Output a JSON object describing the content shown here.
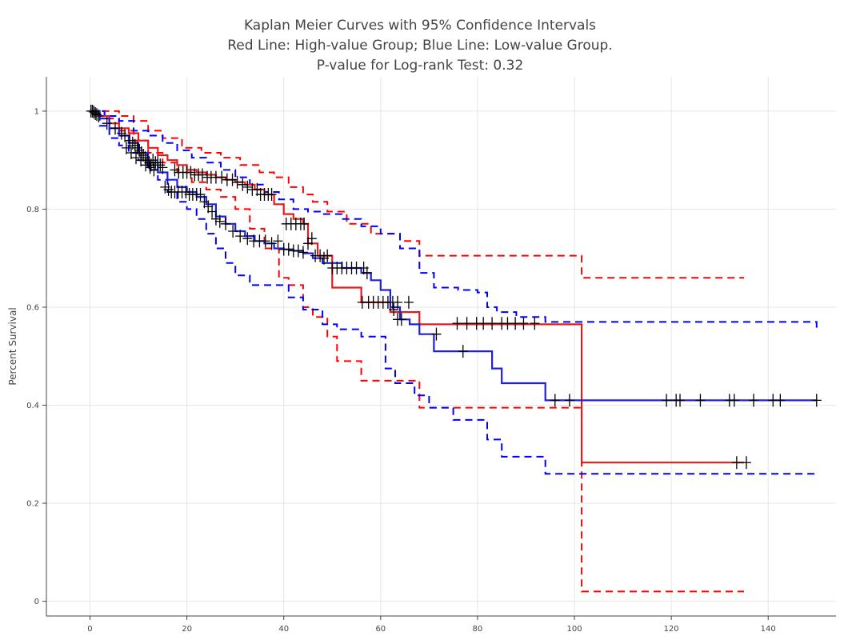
{
  "chart_data": {
    "type": "line",
    "title_lines": [
      "Kaplan Meier Curves with 95% Confidence Intervals",
      "Red Line: High-value Group; Blue Line: Low-value Group.",
      "P-value for Log-rank Test: 0.32"
    ],
    "xlabel": "",
    "ylabel": "Percent Survival",
    "xlim": [
      -9,
      154
    ],
    "ylim": [
      -0.03,
      1.07
    ],
    "x_ticks": [
      0,
      20,
      40,
      60,
      80,
      100,
      120,
      140
    ],
    "y_ticks": [
      0,
      0.2,
      0.4,
      0.6,
      0.8,
      1
    ],
    "y_tick_labels": [
      "0",
      "0.2",
      "0.4",
      "0.6",
      "0.8",
      "1"
    ],
    "grid": true,
    "censor_color": "#000000",
    "series": [
      {
        "name": "High-value Group",
        "role": "estimate",
        "color": "#e41a1c",
        "dash": "solid",
        "x": [
          0,
          2,
          4,
          6,
          8,
          10,
          12,
          14,
          16,
          18,
          20,
          22,
          24,
          26,
          28,
          30,
          32,
          34,
          36,
          38,
          40,
          42,
          44,
          45,
          47,
          50,
          56,
          62,
          68,
          101.5,
          135
        ],
        "y": [
          1.0,
          0.99,
          0.975,
          0.965,
          0.955,
          0.94,
          0.925,
          0.91,
          0.9,
          0.89,
          0.88,
          0.875,
          0.87,
          0.865,
          0.86,
          0.855,
          0.85,
          0.84,
          0.83,
          0.81,
          0.79,
          0.78,
          0.77,
          0.73,
          0.705,
          0.64,
          0.61,
          0.59,
          0.565,
          0.283,
          0.283
        ]
      },
      {
        "name": "High-value Group 95% CI upper",
        "role": "ci",
        "color": "#ff0000",
        "dash": "dashed",
        "x": [
          0,
          3,
          6,
          9,
          12,
          15,
          19,
          23,
          27,
          31,
          35,
          38,
          41,
          44,
          46,
          49,
          53,
          58,
          64,
          68,
          101.5,
          135
        ],
        "y": [
          1.0,
          1.0,
          0.99,
          0.98,
          0.96,
          0.945,
          0.925,
          0.915,
          0.905,
          0.89,
          0.875,
          0.865,
          0.845,
          0.83,
          0.815,
          0.795,
          0.77,
          0.75,
          0.735,
          0.705,
          0.66,
          0.66
        ]
      },
      {
        "name": "High-value Group 95% CI lower",
        "role": "ci",
        "color": "#ff0000",
        "dash": "dashed",
        "x": [
          0,
          3,
          6,
          9,
          12,
          15,
          18,
          21,
          24,
          27,
          30,
          33,
          36,
          39,
          41,
          44,
          46,
          49,
          51,
          56,
          62,
          68,
          101.5,
          135
        ],
        "y": [
          1.0,
          0.985,
          0.96,
          0.94,
          0.915,
          0.895,
          0.875,
          0.855,
          0.84,
          0.825,
          0.8,
          0.76,
          0.72,
          0.66,
          0.645,
          0.6,
          0.58,
          0.54,
          0.49,
          0.45,
          0.45,
          0.395,
          0.02,
          0.02
        ]
      },
      {
        "name": "Low-value Group",
        "role": "estimate",
        "color": "#1f1fdd",
        "dash": "solid",
        "x": [
          0,
          2,
          4,
          6,
          8,
          10,
          12,
          14,
          16,
          18,
          20,
          22,
          24,
          26,
          28,
          30,
          32,
          34,
          36,
          38,
          40,
          42,
          44,
          46,
          48,
          52,
          56,
          58,
          60,
          62,
          64,
          66,
          68,
          71,
          75,
          83,
          85,
          94,
          150
        ],
        "y": [
          1.0,
          0.985,
          0.965,
          0.95,
          0.935,
          0.915,
          0.895,
          0.875,
          0.86,
          0.845,
          0.835,
          0.825,
          0.81,
          0.785,
          0.77,
          0.755,
          0.745,
          0.735,
          0.73,
          0.72,
          0.718,
          0.715,
          0.71,
          0.7,
          0.69,
          0.68,
          0.67,
          0.655,
          0.635,
          0.6,
          0.575,
          0.565,
          0.545,
          0.51,
          0.51,
          0.475,
          0.445,
          0.41,
          0.41
        ]
      },
      {
        "name": "Low-value Group 95% CI upper",
        "role": "ci",
        "color": "#0000ff",
        "dash": "dashed",
        "x": [
          0,
          3,
          6,
          9,
          12,
          15,
          18,
          21,
          24,
          27,
          30,
          33,
          36,
          39,
          42,
          45,
          48,
          52,
          56,
          60,
          64,
          68,
          71,
          76,
          80,
          82,
          84,
          88,
          94,
          150
        ],
        "y": [
          1.0,
          0.99,
          0.98,
          0.96,
          0.95,
          0.935,
          0.92,
          0.905,
          0.895,
          0.88,
          0.865,
          0.85,
          0.835,
          0.82,
          0.8,
          0.795,
          0.79,
          0.78,
          0.765,
          0.75,
          0.72,
          0.67,
          0.64,
          0.635,
          0.63,
          0.6,
          0.59,
          0.58,
          0.57,
          0.555
        ]
      },
      {
        "name": "Low-value Group 95% CI lower",
        "role": "ci",
        "color": "#0000ff",
        "dash": "dashed",
        "x": [
          0,
          2,
          4,
          6,
          8,
          10,
          12,
          14,
          16,
          18,
          20,
          22,
          24,
          26,
          28,
          30,
          33,
          36,
          39,
          41,
          44,
          48,
          51,
          56,
          61,
          63,
          67,
          70,
          75,
          82,
          85,
          94,
          150
        ],
        "y": [
          1.0,
          0.97,
          0.945,
          0.93,
          0.915,
          0.9,
          0.88,
          0.86,
          0.835,
          0.815,
          0.8,
          0.78,
          0.75,
          0.72,
          0.69,
          0.665,
          0.645,
          0.645,
          0.645,
          0.62,
          0.595,
          0.565,
          0.555,
          0.54,
          0.475,
          0.445,
          0.42,
          0.395,
          0.37,
          0.33,
          0.295,
          0.26,
          0.26
        ]
      }
    ],
    "censor_marks": [
      {
        "x": 0.2,
        "y": 1.0
      },
      {
        "x": 0.5,
        "y": 1.0
      },
      {
        "x": 0.8,
        "y": 0.998
      },
      {
        "x": 1.1,
        "y": 0.995
      },
      {
        "x": 1.4,
        "y": 0.993
      },
      {
        "x": 1.8,
        "y": 0.99
      },
      {
        "x": 3.5,
        "y": 0.975
      },
      {
        "x": 5.2,
        "y": 0.965
      },
      {
        "x": 6.5,
        "y": 0.955
      },
      {
        "x": 7.2,
        "y": 0.95
      },
      {
        "x": 8.2,
        "y": 0.94
      },
      {
        "x": 8.8,
        "y": 0.935
      },
      {
        "x": 9.3,
        "y": 0.93
      },
      {
        "x": 9.8,
        "y": 0.925
      },
      {
        "x": 10.2,
        "y": 0.92
      },
      {
        "x": 10.6,
        "y": 0.915
      },
      {
        "x": 11.0,
        "y": 0.91
      },
      {
        "x": 11.4,
        "y": 0.905
      },
      {
        "x": 11.8,
        "y": 0.9
      },
      {
        "x": 12.2,
        "y": 0.895
      },
      {
        "x": 12.6,
        "y": 0.89
      },
      {
        "x": 13.0,
        "y": 0.9
      },
      {
        "x": 13.5,
        "y": 0.895
      },
      {
        "x": 14.0,
        "y": 0.895
      },
      {
        "x": 14.5,
        "y": 0.89
      },
      {
        "x": 15.0,
        "y": 0.885
      },
      {
        "x": 7.5,
        "y": 0.925
      },
      {
        "x": 8.5,
        "y": 0.915
      },
      {
        "x": 9.5,
        "y": 0.905
      },
      {
        "x": 10.5,
        "y": 0.9
      },
      {
        "x": 11.5,
        "y": 0.89
      },
      {
        "x": 12.4,
        "y": 0.885
      },
      {
        "x": 13.2,
        "y": 0.88
      },
      {
        "x": 17.5,
        "y": 0.88
      },
      {
        "x": 18.3,
        "y": 0.875
      },
      {
        "x": 19.2,
        "y": 0.875
      },
      {
        "x": 20.0,
        "y": 0.875
      },
      {
        "x": 20.8,
        "y": 0.875
      },
      {
        "x": 21.6,
        "y": 0.87
      },
      {
        "x": 22.4,
        "y": 0.87
      },
      {
        "x": 23.2,
        "y": 0.87
      },
      {
        "x": 24.2,
        "y": 0.865
      },
      {
        "x": 25.0,
        "y": 0.865
      },
      {
        "x": 26.0,
        "y": 0.865
      },
      {
        "x": 27.2,
        "y": 0.865
      },
      {
        "x": 28.3,
        "y": 0.86
      },
      {
        "x": 29.4,
        "y": 0.86
      },
      {
        "x": 30.4,
        "y": 0.855
      },
      {
        "x": 31.5,
        "y": 0.85
      },
      {
        "x": 32.5,
        "y": 0.845
      },
      {
        "x": 33.5,
        "y": 0.84
      },
      {
        "x": 34.5,
        "y": 0.84
      },
      {
        "x": 35.2,
        "y": 0.83
      },
      {
        "x": 36.0,
        "y": 0.83
      },
      {
        "x": 36.8,
        "y": 0.83
      },
      {
        "x": 37.5,
        "y": 0.83
      },
      {
        "x": 15.5,
        "y": 0.845
      },
      {
        "x": 16.2,
        "y": 0.84
      },
      {
        "x": 16.8,
        "y": 0.835
      },
      {
        "x": 17.5,
        "y": 0.835
      },
      {
        "x": 18.2,
        "y": 0.835
      },
      {
        "x": 19.0,
        "y": 0.835
      },
      {
        "x": 19.8,
        "y": 0.835
      },
      {
        "x": 20.5,
        "y": 0.83
      },
      {
        "x": 21.2,
        "y": 0.83
      },
      {
        "x": 22.0,
        "y": 0.83
      },
      {
        "x": 22.8,
        "y": 0.83
      },
      {
        "x": 23.6,
        "y": 0.815
      },
      {
        "x": 24.4,
        "y": 0.805
      },
      {
        "x": 25.2,
        "y": 0.795
      },
      {
        "x": 26.0,
        "y": 0.78
      },
      {
        "x": 26.8,
        "y": 0.775
      },
      {
        "x": 28.0,
        "y": 0.77
      },
      {
        "x": 29.5,
        "y": 0.755
      },
      {
        "x": 31.0,
        "y": 0.745
      },
      {
        "x": 32.5,
        "y": 0.74
      },
      {
        "x": 33.8,
        "y": 0.735
      },
      {
        "x": 35.0,
        "y": 0.735
      },
      {
        "x": 36.2,
        "y": 0.735
      },
      {
        "x": 37.5,
        "y": 0.73
      },
      {
        "x": 38.8,
        "y": 0.735
      },
      {
        "x": 40.5,
        "y": 0.77
      },
      {
        "x": 41.5,
        "y": 0.77
      },
      {
        "x": 42.5,
        "y": 0.77
      },
      {
        "x": 43.5,
        "y": 0.77
      },
      {
        "x": 44.2,
        "y": 0.77
      },
      {
        "x": 40.0,
        "y": 0.718
      },
      {
        "x": 41.0,
        "y": 0.718
      },
      {
        "x": 42.0,
        "y": 0.715
      },
      {
        "x": 43.0,
        "y": 0.715
      },
      {
        "x": 44.0,
        "y": 0.712
      },
      {
        "x": 45.0,
        "y": 0.73
      },
      {
        "x": 45.8,
        "y": 0.74
      },
      {
        "x": 46.5,
        "y": 0.705
      },
      {
        "x": 47.5,
        "y": 0.705
      },
      {
        "x": 48.3,
        "y": 0.7
      },
      {
        "x": 49.0,
        "y": 0.705
      },
      {
        "x": 50.0,
        "y": 0.68
      },
      {
        "x": 51.0,
        "y": 0.68
      },
      {
        "x": 52.0,
        "y": 0.68
      },
      {
        "x": 53.0,
        "y": 0.68
      },
      {
        "x": 54.0,
        "y": 0.68
      },
      {
        "x": 55.0,
        "y": 0.68
      },
      {
        "x": 56.5,
        "y": 0.68
      },
      {
        "x": 57.2,
        "y": 0.67
      },
      {
        "x": 56.2,
        "y": 0.61
      },
      {
        "x": 57.5,
        "y": 0.61
      },
      {
        "x": 58.5,
        "y": 0.61
      },
      {
        "x": 59.5,
        "y": 0.61
      },
      {
        "x": 60.5,
        "y": 0.61
      },
      {
        "x": 61.5,
        "y": 0.61
      },
      {
        "x": 62.5,
        "y": 0.61
      },
      {
        "x": 63.5,
        "y": 0.61
      },
      {
        "x": 65.8,
        "y": 0.61
      },
      {
        "x": 62.7,
        "y": 0.595
      },
      {
        "x": 63.5,
        "y": 0.575
      },
      {
        "x": 64.3,
        "y": 0.575
      },
      {
        "x": 71.5,
        "y": 0.545
      },
      {
        "x": 75.8,
        "y": 0.567
      },
      {
        "x": 77.0,
        "y": 0.51
      },
      {
        "x": 77.8,
        "y": 0.567
      },
      {
        "x": 79.8,
        "y": 0.567
      },
      {
        "x": 81.2,
        "y": 0.567
      },
      {
        "x": 83.0,
        "y": 0.567
      },
      {
        "x": 85.0,
        "y": 0.567
      },
      {
        "x": 86.2,
        "y": 0.567
      },
      {
        "x": 87.8,
        "y": 0.567
      },
      {
        "x": 89.5,
        "y": 0.567
      },
      {
        "x": 91.8,
        "y": 0.567
      },
      {
        "x": 96.0,
        "y": 0.41
      },
      {
        "x": 99.0,
        "y": 0.41
      },
      {
        "x": 119.0,
        "y": 0.41
      },
      {
        "x": 121.0,
        "y": 0.41
      },
      {
        "x": 121.8,
        "y": 0.41
      },
      {
        "x": 126.0,
        "y": 0.41
      },
      {
        "x": 132.0,
        "y": 0.41
      },
      {
        "x": 133.0,
        "y": 0.41
      },
      {
        "x": 137.0,
        "y": 0.41
      },
      {
        "x": 141.0,
        "y": 0.41
      },
      {
        "x": 142.5,
        "y": 0.41
      },
      {
        "x": 150.0,
        "y": 0.41
      },
      {
        "x": 133.5,
        "y": 0.283
      },
      {
        "x": 135.5,
        "y": 0.283
      }
    ]
  }
}
